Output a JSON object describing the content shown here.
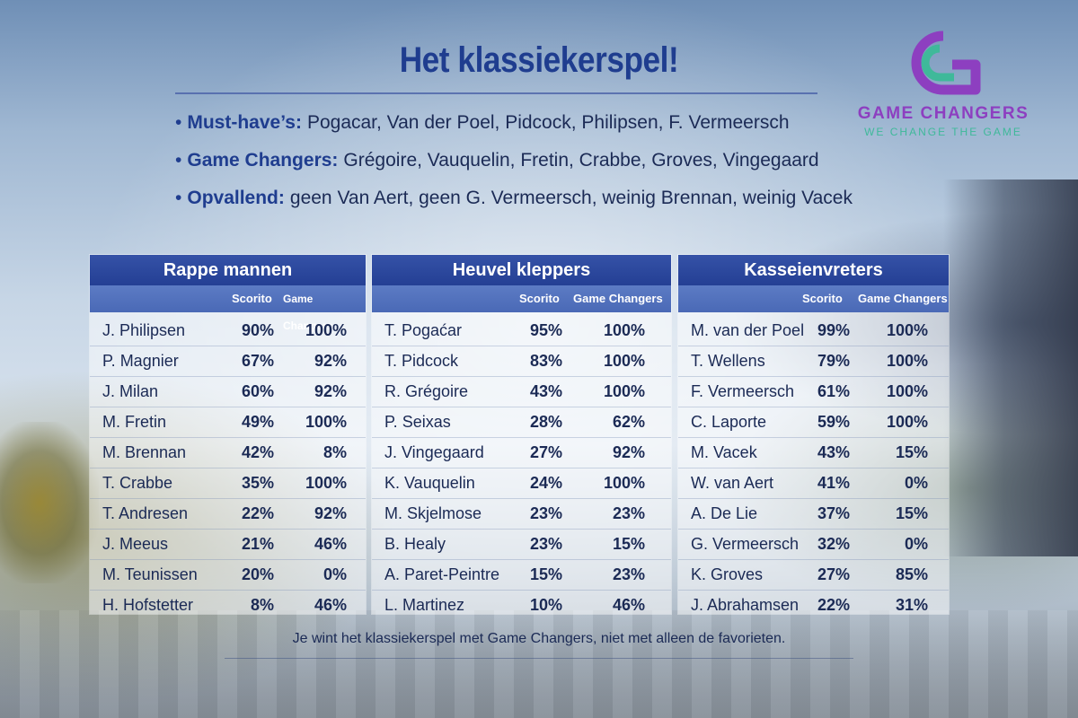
{
  "title": "Het klassiekerspel!",
  "bullets": [
    {
      "key": "Must-have’s:",
      "text": "Pogacar, Van der Poel, Pidcock, Philipsen, F. Vermeersch"
    },
    {
      "key": "Game Changers:",
      "text": "Grégoire, Vauquelin, Fretin, Crabbe, Groves, Vingegaard"
    },
    {
      "key": "Opvallend:",
      "text": "geen Van Aert, geen G. Vermeersch, weinig Brennan, weinig Vacek"
    }
  ],
  "logo": {
    "name": "GAME CHANGERS",
    "tagline": "WE CHANGE THE GAME",
    "colors": {
      "purple": "#8d3fc0",
      "green": "#3fb99a"
    }
  },
  "colors": {
    "header": "#243f94",
    "subheader": "#4a69b6",
    "text": "#1b2a55"
  },
  "tables": [
    {
      "title": "Rappe mannen",
      "col_scorito": "Scorito",
      "col_gc": "Game Changers",
      "rows": [
        {
          "name": "J. Philipsen",
          "scorito": "90%",
          "gc": "100%"
        },
        {
          "name": "P. Magnier",
          "scorito": "67%",
          "gc": "92%"
        },
        {
          "name": "J. Milan",
          "scorito": "60%",
          "gc": "92%"
        },
        {
          "name": "M. Fretin",
          "scorito": "49%",
          "gc": "100%"
        },
        {
          "name": "M. Brennan",
          "scorito": "42%",
          "gc": "8%"
        },
        {
          "name": "T. Crabbe",
          "scorito": "35%",
          "gc": "100%"
        },
        {
          "name": "T. Andresen",
          "scorito": "22%",
          "gc": "92%"
        },
        {
          "name": "J. Meeus",
          "scorito": "21%",
          "gc": "46%"
        },
        {
          "name": "M. Teunissen",
          "scorito": "20%",
          "gc": "0%"
        },
        {
          "name": "H. Hofstetter",
          "scorito": "8%",
          "gc": "46%"
        }
      ]
    },
    {
      "title": "Heuvel kleppers",
      "col_scorito": "Scorito",
      "col_gc": "Game Changers",
      "rows": [
        {
          "name": "T. Pogaćar",
          "scorito": "95%",
          "gc": "100%"
        },
        {
          "name": "T. Pidcock",
          "scorito": "83%",
          "gc": "100%"
        },
        {
          "name": "R. Grégoire",
          "scorito": "43%",
          "gc": "100%"
        },
        {
          "name": "P. Seixas",
          "scorito": "28%",
          "gc": "62%"
        },
        {
          "name": "J. Vingegaard",
          "scorito": "27%",
          "gc": "92%"
        },
        {
          "name": "K. Vauquelin",
          "scorito": "24%",
          "gc": "100%"
        },
        {
          "name": "M. Skjelmose",
          "scorito": "23%",
          "gc": "23%"
        },
        {
          "name": "B. Healy",
          "scorito": "23%",
          "gc": "15%"
        },
        {
          "name": "A. Paret-Peintre",
          "scorito": "15%",
          "gc": "23%"
        },
        {
          "name": "L. Martinez",
          "scorito": "10%",
          "gc": "46%"
        }
      ]
    },
    {
      "title": "Kasseienvreters",
      "col_scorito": "Scorito",
      "col_gc": "Game Changers",
      "rows": [
        {
          "name": "M. van der Poel",
          "scorito": "99%",
          "gc": "100%"
        },
        {
          "name": "T. Wellens",
          "scorito": "79%",
          "gc": "100%"
        },
        {
          "name": "F. Vermeersch",
          "scorito": "61%",
          "gc": "100%"
        },
        {
          "name": "C. Laporte",
          "scorito": "59%",
          "gc": "100%"
        },
        {
          "name": "M. Vacek",
          "scorito": "43%",
          "gc": "15%"
        },
        {
          "name": "W. van Aert",
          "scorito": "41%",
          "gc": "0%"
        },
        {
          "name": "A. De Lie",
          "scorito": "37%",
          "gc": "15%"
        },
        {
          "name": "G. Vermeersch",
          "scorito": "32%",
          "gc": "0%"
        },
        {
          "name": "K. Groves",
          "scorito": "27%",
          "gc": "85%"
        },
        {
          "name": "J. Abrahamsen",
          "scorito": "22%",
          "gc": "31%"
        }
      ]
    }
  ],
  "footer": "Je wint het klassiekerspel met Game Changers, niet met alleen de favorieten."
}
